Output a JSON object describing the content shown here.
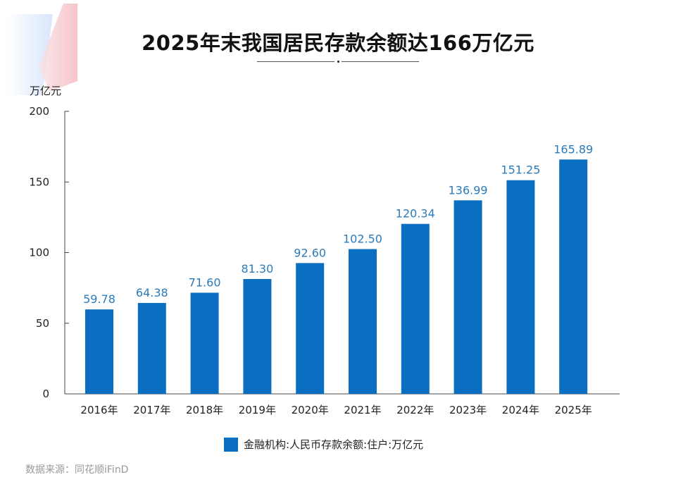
{
  "chart_data": {
    "type": "bar",
    "title": "2025年末我国居民存款余额达166万亿元",
    "ylabel": "万亿元",
    "categories": [
      "2016年",
      "2017年",
      "2018年",
      "2019年",
      "2020年",
      "2021年",
      "2022年",
      "2023年",
      "2024年",
      "2025年"
    ],
    "series": [
      {
        "name": "金融机构:人民币存款余额:住户:万亿元",
        "values": [
          59.78,
          64.38,
          71.6,
          81.3,
          92.6,
          102.5,
          120.34,
          136.99,
          151.25,
          165.89
        ]
      }
    ],
    "data_labels": [
      "59.78",
      "64.38",
      "71.60",
      "81.30",
      "92.60",
      "102.50",
      "120.34",
      "136.99",
      "151.25",
      "165.89"
    ],
    "ylim": [
      0,
      200
    ],
    "yticks": [
      0,
      50,
      100,
      150,
      200
    ],
    "grid": false,
    "legend_position": "bottom",
    "colors": {
      "bar": "#0a6fc1",
      "label": "#2b7bbb"
    }
  },
  "source": "数据来源：同花顺iFinD"
}
